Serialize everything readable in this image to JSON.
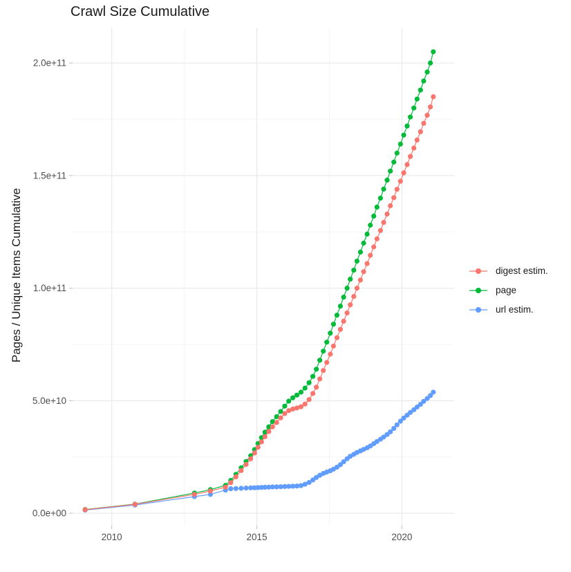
{
  "chart_data": {
    "type": "scatter",
    "title": "Crawl Size Cumulative",
    "xlabel": "",
    "ylabel": "Pages / Unique Items Cumulative",
    "legend_position": "right-center",
    "grid": true,
    "x_years": [
      2009.08,
      2010.8,
      2012.85,
      2013.4,
      2013.92,
      2014.1,
      2014.28,
      2014.46,
      2014.63,
      2014.79,
      2014.92,
      2015.04,
      2015.16,
      2015.28,
      2015.41,
      2015.54,
      2015.68,
      2015.82,
      2015.96,
      2016.1,
      2016.24,
      2016.38,
      2016.52,
      2016.66,
      2016.8,
      2016.93,
      2017.05,
      2017.17,
      2017.29,
      2017.41,
      2017.53,
      2017.64,
      2017.76,
      2017.88,
      2017.99,
      2018.11,
      2018.22,
      2018.34,
      2018.45,
      2018.57,
      2018.68,
      2018.8,
      2018.91,
      2019.03,
      2019.14,
      2019.26,
      2019.37,
      2019.49,
      2019.6,
      2019.72,
      2019.83,
      2019.95,
      2020.06,
      2020.18,
      2020.29,
      2020.41,
      2020.52,
      2020.64,
      2020.75,
      2020.87,
      2020.98,
      2021.08
    ],
    "series": [
      {
        "name": "digest estim.",
        "color": "#F8766D",
        "values_e9": [
          1.6,
          4.0,
          8.4,
          9.9,
          11.6,
          13.6,
          16.2,
          19.0,
          21.7,
          24.2,
          26.8,
          29.3,
          31.7,
          34.0,
          36.3,
          38.4,
          40.3,
          42.4,
          44.3,
          45.6,
          46.3,
          46.8,
          47.3,
          48.5,
          50.5,
          53.2,
          56.0,
          59.7,
          63.4,
          67.0,
          70.7,
          74.3,
          78.0,
          81.7,
          85.3,
          89.0,
          92.6,
          96.3,
          100.0,
          103.6,
          107.3,
          110.9,
          114.6,
          118.3,
          121.9,
          125.6,
          129.2,
          132.9,
          136.6,
          140.2,
          143.9,
          147.5,
          151.2,
          154.9,
          158.5,
          162.2,
          165.8,
          169.5,
          173.2,
          176.8,
          180.5,
          185.0
        ]
      },
      {
        "name": "page",
        "color": "#00BA38",
        "values_e9": [
          1.7,
          4.1,
          9.0,
          10.5,
          12.4,
          14.6,
          17.3,
          20.2,
          23.0,
          25.6,
          28.3,
          31.0,
          33.6,
          36.0,
          38.4,
          40.7,
          42.9,
          45.2,
          47.6,
          49.8,
          51.3,
          52.5,
          53.8,
          55.6,
          58.0,
          60.8,
          64.0,
          68.0,
          72.0,
          76.0,
          80.0,
          84.0,
          88.0,
          92.0,
          96.0,
          100.0,
          104.0,
          108.0,
          112.0,
          116.0,
          120.0,
          124.0,
          128.0,
          132.0,
          136.0,
          140.0,
          144.0,
          148.0,
          152.0,
          156.0,
          160.0,
          164.0,
          168.0,
          172.0,
          176.0,
          180.0,
          184.0,
          188.0,
          192.0,
          196.0,
          200.0,
          205.0
        ]
      },
      {
        "name": "url estim.",
        "color": "#619CFF",
        "values_e9": [
          1.4,
          3.7,
          7.4,
          8.4,
          10.3,
          10.9,
          11.0,
          11.1,
          11.2,
          11.3,
          11.35,
          11.4,
          11.5,
          11.55,
          11.6,
          11.7,
          11.75,
          11.8,
          11.9,
          11.95,
          12.0,
          12.1,
          12.3,
          12.9,
          13.7,
          14.8,
          15.9,
          16.9,
          17.7,
          18.3,
          18.9,
          19.6,
          20.5,
          21.6,
          22.9,
          24.2,
          25.3,
          26.2,
          27.0,
          27.7,
          28.4,
          29.1,
          29.9,
          30.9,
          31.9,
          32.9,
          33.9,
          35.0,
          36.2,
          37.7,
          39.3,
          40.9,
          42.3,
          43.6,
          44.8,
          46.0,
          47.2,
          48.4,
          49.7,
          51.0,
          52.3,
          53.8
        ]
      }
    ],
    "x_ticks": [
      {
        "v": 2010,
        "label": "2010"
      },
      {
        "v": 2015,
        "label": "2015"
      },
      {
        "v": 2020,
        "label": "2020"
      }
    ],
    "x_minor": [
      2012.5,
      2017.5
    ],
    "y_ticks": [
      {
        "v_e9": 0,
        "label": "0.0e+00"
      },
      {
        "v_e9": 50,
        "label": "5.0e+10"
      },
      {
        "v_e9": 100,
        "label": "1.0e+11"
      },
      {
        "v_e9": 150,
        "label": "1.5e+11"
      },
      {
        "v_e9": 200,
        "label": "2.0e+11"
      }
    ],
    "y_minor_e9": [
      25,
      75,
      125,
      175
    ],
    "xlim": [
      2008.65,
      2021.8
    ],
    "ylim_e9": [
      -5.5,
      215.7
    ],
    "styles": {
      "grid_major": "#E8E8E8",
      "grid_minor": "#F4F4F4",
      "tick_color": "#C2C2C2",
      "axis_text_color": "#4D4D4D",
      "title_color": "#1A1A1A",
      "point_radius": 3.6,
      "line_width": 1.2
    }
  }
}
